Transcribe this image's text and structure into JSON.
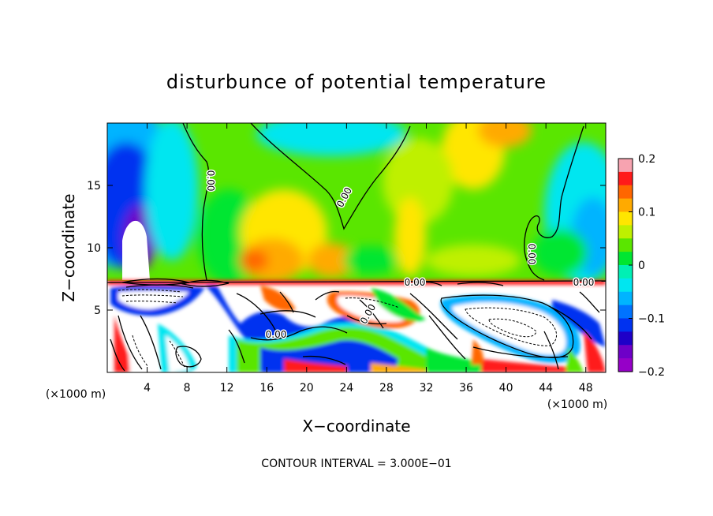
{
  "chart_data": {
    "type": "heatmap",
    "title": "disturbunce of potential temperature",
    "xlabel": "X−coordinate",
    "ylabel": "Z−coordinate",
    "x_unit": "(×1000 m)",
    "y_unit": "(×1000 m)",
    "xlim": [
      0,
      50
    ],
    "ylim": [
      0,
      20
    ],
    "x_ticks": [
      4,
      8,
      12,
      16,
      20,
      24,
      28,
      32,
      36,
      40,
      44,
      48
    ],
    "y_ticks": [
      5,
      10,
      15
    ],
    "colorbar": {
      "range": [
        -0.2,
        0.2
      ],
      "tick_values": [
        0.2,
        0.1,
        0,
        -0.1,
        -0.2
      ],
      "tick_labels": [
        "0.2",
        "0.1",
        "0",
        "−0.1",
        "−0.2"
      ],
      "colors": [
        "#f7a3b0",
        "#ff1a1a",
        "#ff6600",
        "#ffaa00",
        "#ffe600",
        "#bff000",
        "#5ae600",
        "#00e632",
        "#00f0b4",
        "#00e6f0",
        "#00b4ff",
        "#0073ff",
        "#0032f0",
        "#1e00c8",
        "#6e00c8",
        "#9600c8"
      ]
    },
    "contour_labels": [
      "0.00"
    ],
    "contour_interval": "CONTOUR INTERVAL = 3.000E−01",
    "grid": false
  }
}
